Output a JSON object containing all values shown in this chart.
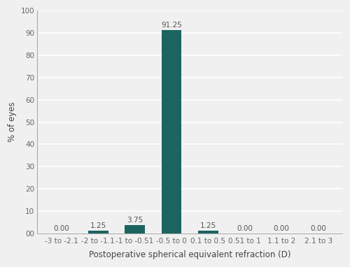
{
  "categories": [
    "-3 to -2.1",
    "-2 to -1.1",
    "-1 to -0.51",
    "-0.5 to 0",
    "0.1 to 0.5",
    "0.51 to 1",
    "1.1 to 2",
    "2.1 to 3"
  ],
  "values": [
    0.0,
    1.25,
    3.75,
    91.25,
    1.25,
    0.0,
    0.0,
    0.0
  ],
  "bar_color": "#1c6460",
  "title": "",
  "xlabel": "Postoperative spherical equivalent refraction (D)",
  "ylabel": "% of eyes",
  "ylim": [
    0,
    100
  ],
  "ytick_labels": [
    "00",
    "10",
    "20",
    "30",
    "40",
    "50",
    "60",
    "70",
    "80",
    "90",
    "100"
  ],
  "ytick_values": [
    0,
    10,
    20,
    30,
    40,
    50,
    60,
    70,
    80,
    90,
    100
  ],
  "background_color": "#f0f0f0",
  "grid_color": "#ffffff",
  "label_fontsize": 8.5,
  "tick_fontsize": 7.5,
  "annot_fontsize": 7.5,
  "bar_width": 0.55
}
